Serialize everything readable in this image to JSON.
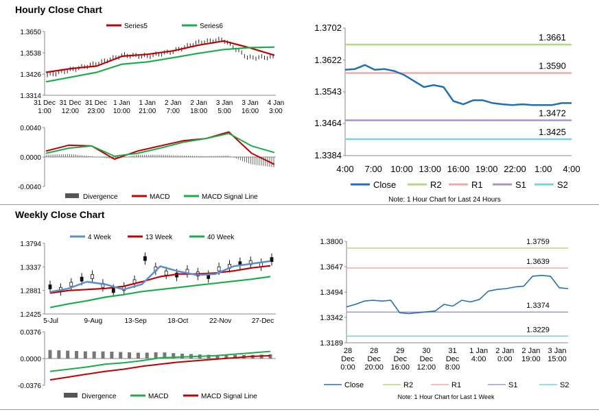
{
  "sections": {
    "hourly_title": "Hourly Close Chart",
    "weekly_title": "Weekly Close Chart"
  },
  "colors": {
    "red": "#c00000",
    "green": "#1aab4b",
    "blue": "#1f6fb5",
    "grey": "#555555",
    "r2": "#b7d77e",
    "r1": "#f1a9a9",
    "s1": "#a994c6",
    "s2": "#7dcfdc"
  },
  "chart_data": [
    {
      "id": "hourly-price",
      "type": "line",
      "legend": [
        "Series5",
        "Series6"
      ],
      "ylim": [
        1.3314,
        1.365
      ],
      "yticks": [
        "1.3650",
        "1.3538",
        "1.3426",
        "1.3314"
      ],
      "categories": [
        "31 Dec 1:00",
        "31 Dec 12:00",
        "31 Dec 23:00",
        "1 Jan 10:00",
        "1 Jan 21:00",
        "2 Jan 7:00",
        "2 Jan 18:00",
        "3 Jan 5:00",
        "3 Jan 16:00",
        "4 Jan 3:00"
      ],
      "series": [
        {
          "name": "Series5",
          "values": [
            1.3435,
            1.3455,
            1.3468,
            1.352,
            1.353,
            1.3548,
            1.3578,
            1.36,
            1.3565,
            1.3525
          ]
        },
        {
          "name": "Series6",
          "values": [
            1.3385,
            1.341,
            1.3435,
            1.3478,
            1.349,
            1.3512,
            1.3535,
            1.3555,
            1.3565,
            1.3568
          ]
        },
        {
          "name": "Close",
          "values": [
            1.342,
            1.345,
            1.3482,
            1.3525,
            1.352,
            1.3545,
            1.3592,
            1.3608,
            1.3512,
            1.3515
          ]
        }
      ]
    },
    {
      "id": "hourly-macd",
      "type": "line",
      "legend": [
        "Divergence",
        "MACD",
        "MACD Signal Line"
      ],
      "ylim": [
        -0.004,
        0.004
      ],
      "yticks": [
        "0.0040",
        "0.0000",
        "-0.0040"
      ],
      "series": [
        {
          "name": "MACD",
          "values": [
            0.0008,
            0.0016,
            0.0015,
            -0.0003,
            0.0008,
            0.0015,
            0.0022,
            0.0025,
            0.0034,
            0.0005,
            -0.001
          ]
        },
        {
          "name": "MACD Signal Line",
          "values": [
            0.0005,
            0.0012,
            0.0015,
            0.0001,
            0.0005,
            0.0012,
            0.002,
            0.0025,
            0.0032,
            0.0015,
            0.0006
          ]
        },
        {
          "name": "Divergence",
          "values": [
            0.0003,
            0.0004,
            0.0001,
            -0.0003,
            0.0003,
            0.0003,
            0.0002,
            0.0001,
            0.0002,
            -0.001,
            -0.0014
          ]
        }
      ]
    },
    {
      "id": "hourly-levels",
      "type": "line",
      "ylim": [
        1.3384,
        1.3702
      ],
      "yticks": [
        "1.3702",
        "1.3622",
        "1.3543",
        "1.3464",
        "1.3384"
      ],
      "xticks": [
        "4:00",
        "7:00",
        "10:00",
        "13:00",
        "16:00",
        "19:00",
        "22:00",
        "1:00",
        "4:00"
      ],
      "legend": [
        "Close",
        "R2",
        "R1",
        "S1",
        "S2"
      ],
      "levels": {
        "R2": 1.3661,
        "R1": 1.359,
        "S1": 1.3472,
        "S2": 1.3425
      },
      "level_labels": {
        "R2": "1.3661",
        "R1": "1.3590",
        "S1": "1.3472",
        "S2": "1.3425"
      },
      "close": [
        1.3598,
        1.36,
        1.361,
        1.3598,
        1.36,
        1.3595,
        1.3585,
        1.357,
        1.3555,
        1.356,
        1.3555,
        1.352,
        1.3512,
        1.3522,
        1.3522,
        1.3515,
        1.3512,
        1.351,
        1.3512,
        1.351,
        1.351,
        1.351,
        1.3515,
        1.3515
      ],
      "note": "Note: 1 Hour Chart for Last 24 Hours"
    },
    {
      "id": "weekly-price",
      "type": "line",
      "legend": [
        "4 Week",
        "13 Week",
        "40 Week"
      ],
      "ylim": [
        1.2425,
        1.3794
      ],
      "yticks": [
        "1.3794",
        "1.3337",
        "1.2881",
        "1.2425"
      ],
      "xticks": [
        "5-Jul",
        "9-Aug",
        "13-Sep",
        "18-Oct",
        "22-Nov",
        "27-Dec"
      ],
      "series": [
        {
          "name": "4 Week",
          "values": [
            1.285,
            1.292,
            1.305,
            1.3,
            1.29,
            1.3,
            1.335,
            1.325,
            1.318,
            1.32,
            1.335,
            1.34,
            1.345
          ]
        },
        {
          "name": "13 Week",
          "values": [
            1.283,
            1.288,
            1.29,
            1.292,
            1.296,
            1.305,
            1.315,
            1.32,
            1.32,
            1.322,
            1.326,
            1.332,
            1.336
          ]
        },
        {
          "name": "40 Week",
          "values": [
            1.255,
            1.262,
            1.268,
            1.275,
            1.28,
            1.286,
            1.29,
            1.294,
            1.298,
            1.302,
            1.306,
            1.31,
            1.315
          ]
        }
      ],
      "candles": [
        1.295,
        1.29,
        1.3,
        1.31,
        1.315,
        1.298,
        1.288,
        1.292,
        1.305,
        1.35,
        1.33,
        1.322,
        1.318,
        1.325,
        1.32,
        1.315,
        1.33,
        1.335,
        1.34,
        1.342,
        1.338,
        1.348
      ]
    },
    {
      "id": "weekly-macd",
      "type": "line",
      "legend": [
        "Divergence",
        "MACD",
        "MACD Signal Line"
      ],
      "ylim": [
        -0.0376,
        0.0376
      ],
      "yticks": [
        "0.0376",
        "0.0000",
        "-0.0376"
      ],
      "series": [
        {
          "name": "MACD",
          "values": [
            -0.018,
            -0.015,
            -0.012,
            -0.008,
            -0.006,
            -0.003,
            0.001,
            0.002,
            0.003,
            0.004,
            0.006,
            0.008,
            0.01
          ]
        },
        {
          "name": "MACD Signal Line",
          "values": [
            -0.03,
            -0.026,
            -0.022,
            -0.018,
            -0.015,
            -0.011,
            -0.008,
            -0.005,
            -0.003,
            -0.001,
            0.001,
            0.003,
            0.004
          ]
        },
        {
          "name": "Divergence",
          "values": [
            0.012,
            0.011,
            0.01,
            0.01,
            0.009,
            0.008,
            0.009,
            0.007,
            0.006,
            0.005,
            0.005,
            0.005,
            0.006
          ]
        }
      ]
    },
    {
      "id": "weekly-levels",
      "type": "line",
      "ylim": [
        1.3189,
        1.38
      ],
      "yticks": [
        "1.3800",
        "1.3647",
        "1.3494",
        "1.3342",
        "1.3189"
      ],
      "xticks": [
        [
          "28",
          "Dec",
          "0:00"
        ],
        [
          "28",
          "Dec",
          "20:00"
        ],
        [
          "29",
          "Dec",
          "16:00"
        ],
        [
          "30",
          "Dec",
          "12:00"
        ],
        [
          "31",
          "Dec",
          "8:00"
        ],
        [
          "1 Jan",
          "4:00"
        ],
        [
          "2 Jan",
          "0:00"
        ],
        [
          "2 Jan",
          "19:00"
        ],
        [
          "3 Jan",
          "15:00"
        ]
      ],
      "legend": [
        "Close",
        "R2",
        "R1",
        "S1",
        "S2"
      ],
      "levels": {
        "R2": 1.3759,
        "R1": 1.3639,
        "S1": 1.3374,
        "S2": 1.3229
      },
      "level_labels": {
        "R2": "1.3759",
        "R1": "1.3639",
        "S1": "1.3374",
        "S2": "1.3229"
      },
      "close": [
        1.3405,
        1.342,
        1.344,
        1.3445,
        1.344,
        1.3445,
        1.337,
        1.3365,
        1.337,
        1.3375,
        1.338,
        1.342,
        1.341,
        1.3445,
        1.3435,
        1.345,
        1.35,
        1.351,
        1.3515,
        1.3525,
        1.353,
        1.359,
        1.3595,
        1.359,
        1.352,
        1.3515
      ],
      "note": "Note: 1 Hour Chart for Last 1 Week"
    }
  ]
}
